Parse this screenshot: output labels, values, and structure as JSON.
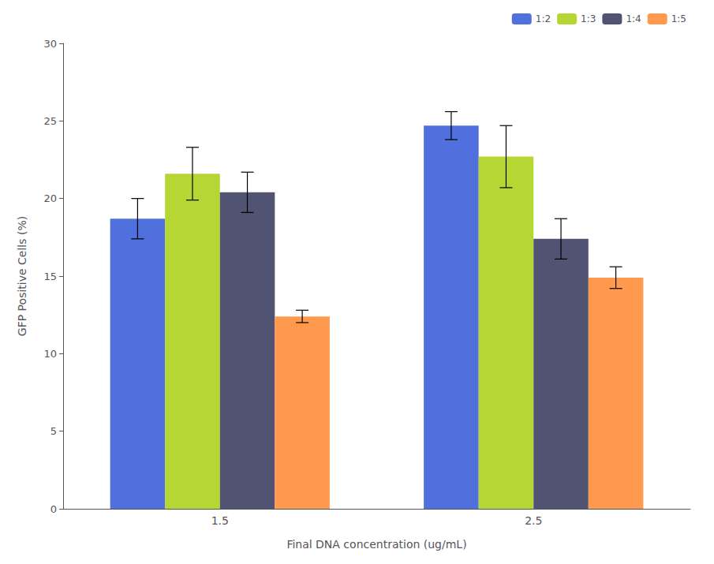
{
  "chart_data": {
    "type": "bar",
    "categories": [
      "1.5",
      "2.5"
    ],
    "series": [
      {
        "name": "1:2",
        "values": [
          18.7,
          24.7
        ],
        "errors": [
          1.3,
          0.9
        ]
      },
      {
        "name": "1:3",
        "values": [
          21.6,
          22.7
        ],
        "errors": [
          1.7,
          2.0
        ]
      },
      {
        "name": "1:4",
        "values": [
          20.4,
          17.4
        ],
        "errors": [
          1.3,
          1.3
        ]
      },
      {
        "name": "1:5",
        "values": [
          12.4,
          14.9
        ],
        "errors": [
          0.4,
          0.7
        ]
      }
    ],
    "xlabel": "Final DNA concentration (ug/mL)",
    "ylabel": "GFP Positive Cells (%)",
    "ylim": [
      0,
      30
    ],
    "yticks": [
      0,
      5,
      10,
      15,
      20,
      25,
      30
    ],
    "legend": "upper right",
    "grid": false
  }
}
